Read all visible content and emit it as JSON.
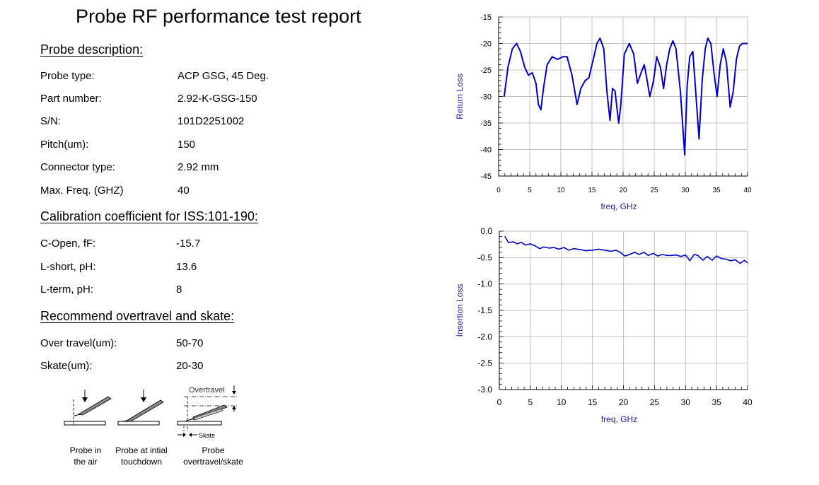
{
  "title": "Probe RF performance test report",
  "probe_description": {
    "heading": "Probe description:",
    "rows": [
      {
        "label": "Probe type:",
        "value": "ACP GSG, 45 Deg."
      },
      {
        "label": "Part number:",
        "value": "2.92-K-GSG-150"
      },
      {
        "label": "S/N:",
        "value": "101D2251002"
      },
      {
        "label": "Pitch(um):",
        "value": "150"
      },
      {
        "label": "Connector type:",
        "value": "2.92 mm"
      },
      {
        "label": "Max. Freq. (GHZ)",
        "value": "40"
      }
    ]
  },
  "calibration": {
    "heading": "Calibration coefficient for ISS:101-190:",
    "rows": [
      {
        "label": "C-Open, fF:",
        "value": "-15.7"
      },
      {
        "label": "L-short, pH:",
        "value": "13.6"
      },
      {
        "label": "L-term, pH:",
        "value": "8"
      }
    ]
  },
  "overtravel": {
    "heading": "Recommend overtravel and skate:",
    "rows": [
      {
        "label": "Over travel(um):",
        "value": "50-70"
      },
      {
        "label": "Skate(um):",
        "value": "20-30"
      }
    ]
  },
  "diagram": {
    "overtravel_label": "Overtravel",
    "skate_label": "Skate",
    "captions": [
      {
        "line1": "Probe in",
        "line2": "the air"
      },
      {
        "line1": "Probe at intial",
        "line2": "touchdown"
      },
      {
        "line1": "Probe",
        "line2": "overtravel/skate"
      }
    ]
  },
  "colors": {
    "trace": "#0000cc",
    "axis_label": "#1a1aa6",
    "grid": "#c0c0c0"
  },
  "chart_data": [
    {
      "type": "line",
      "title": "",
      "xlabel": "freq, GHz",
      "ylabel": "Return Loss",
      "xlim": [
        0,
        40
      ],
      "ylim": [
        -45,
        -15
      ],
      "xticks": [
        0,
        5,
        10,
        15,
        20,
        25,
        30,
        35,
        40
      ],
      "yticks": [
        -45,
        -40,
        -35,
        -30,
        -25,
        -20,
        -15
      ],
      "ytick_labels": [
        "-45",
        "-40",
        "-35",
        "-30",
        "-25",
        "-20",
        "-15"
      ],
      "grid": true,
      "x": [
        0.9,
        1.5,
        2.2,
        2.9,
        3.5,
        4.2,
        4.8,
        5.4,
        6.0,
        6.4,
        6.8,
        7.2,
        7.8,
        8.6,
        9.5,
        10.3,
        11.0,
        11.8,
        12.6,
        13.2,
        13.9,
        14.5,
        15.2,
        15.8,
        16.3,
        16.9,
        17.4,
        17.9,
        18.3,
        18.7,
        19.0,
        19.3,
        19.6,
        20.2,
        21.0,
        21.7,
        22.3,
        22.9,
        23.4,
        23.8,
        24.3,
        24.9,
        25.4,
        26.0,
        26.5,
        27.0,
        27.5,
        28.0,
        28.5,
        29.2,
        29.9,
        30.3,
        30.7,
        31.2,
        31.6,
        32.2,
        32.7,
        33.2,
        33.6,
        34.1,
        34.6,
        35.1,
        35.6,
        36.1,
        36.6,
        37.2,
        37.7,
        38.2,
        38.7,
        39.2,
        39.6,
        40.0
      ],
      "values": [
        -30.0,
        -24.5,
        -21.0,
        -20.0,
        -21.5,
        -24.5,
        -26.0,
        -25.5,
        -27.5,
        -31.5,
        -32.5,
        -28.5,
        -24.0,
        -22.5,
        -23.0,
        -22.5,
        -22.5,
        -26.0,
        -31.5,
        -28.5,
        -27.0,
        -26.5,
        -23.0,
        -20.0,
        -19.0,
        -21.0,
        -29.0,
        -34.5,
        -28.5,
        -29.0,
        -32.0,
        -35.0,
        -32.0,
        -22.0,
        -20.0,
        -22.0,
        -27.5,
        -25.5,
        -24.0,
        -26.5,
        -30.0,
        -27.0,
        -22.5,
        -24.5,
        -28.5,
        -24.0,
        -21.0,
        -19.5,
        -21.0,
        -29.0,
        -41.0,
        -28.0,
        -22.5,
        -21.5,
        -28.0,
        -38.0,
        -27.0,
        -21.0,
        -19.0,
        -20.0,
        -25.5,
        -30.0,
        -24.0,
        -21.0,
        -23.5,
        -32.0,
        -29.0,
        -23.0,
        -20.5,
        -20.0,
        -20.0,
        -20.0
      ]
    },
    {
      "type": "line",
      "title": "",
      "xlabel": "freq, GHz",
      "ylabel": "Insertion Loss",
      "xlim": [
        0,
        40
      ],
      "ylim": [
        -3.0,
        0.0
      ],
      "xticks": [
        0,
        5,
        10,
        15,
        20,
        25,
        30,
        35,
        40
      ],
      "yticks": [
        -3.0,
        -2.5,
        -2.0,
        -1.5,
        -1.0,
        -0.5,
        0.0
      ],
      "ytick_labels": [
        "-3.0",
        "-2.5",
        "-2.0",
        "-1.5",
        "-1.0",
        "-0.5",
        "0.0"
      ],
      "grid": true,
      "x": [
        0.9,
        1.5,
        2.2,
        2.9,
        3.5,
        4.2,
        5.0,
        5.8,
        6.5,
        7.2,
        8.0,
        8.8,
        9.6,
        10.4,
        11.2,
        12.0,
        13.0,
        14.0,
        15.0,
        16.0,
        17.0,
        18.0,
        18.8,
        19.5,
        20.2,
        21.0,
        21.8,
        22.5,
        23.3,
        24.0,
        24.8,
        25.5,
        26.3,
        27.0,
        27.8,
        28.5,
        29.3,
        30.0,
        30.7,
        31.4,
        32.0,
        32.8,
        33.5,
        34.3,
        35.0,
        35.8,
        36.5,
        37.3,
        38.0,
        38.8,
        39.5,
        40.0
      ],
      "values": [
        -0.1,
        -0.22,
        -0.2,
        -0.24,
        -0.21,
        -0.26,
        -0.24,
        -0.28,
        -0.33,
        -0.3,
        -0.32,
        -0.31,
        -0.34,
        -0.31,
        -0.36,
        -0.33,
        -0.35,
        -0.37,
        -0.36,
        -0.34,
        -0.36,
        -0.38,
        -0.36,
        -0.4,
        -0.47,
        -0.44,
        -0.4,
        -0.44,
        -0.4,
        -0.46,
        -0.42,
        -0.47,
        -0.44,
        -0.46,
        -0.46,
        -0.45,
        -0.48,
        -0.45,
        -0.56,
        -0.44,
        -0.46,
        -0.55,
        -0.48,
        -0.55,
        -0.47,
        -0.52,
        -0.53,
        -0.56,
        -0.54,
        -0.61,
        -0.55,
        -0.6
      ]
    }
  ]
}
